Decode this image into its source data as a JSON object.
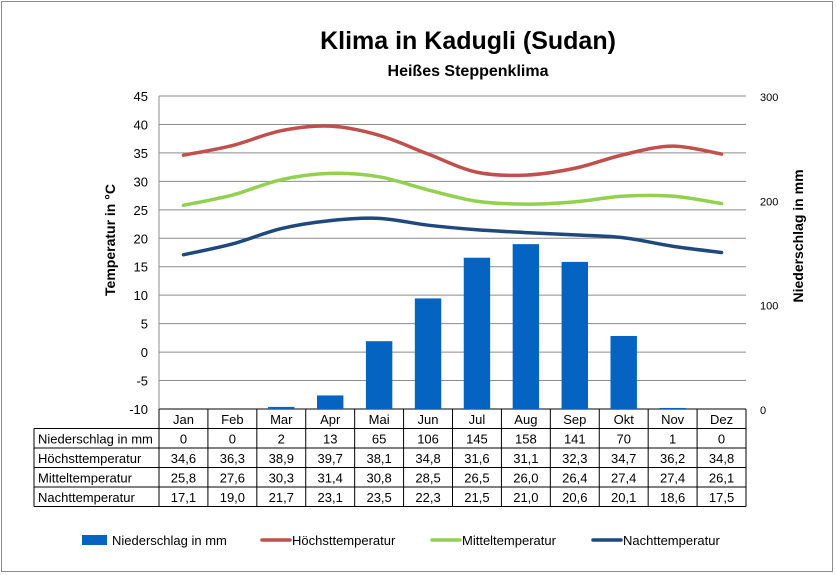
{
  "chart_data": {
    "type": "bar+line",
    "title": "Klima in Kadugli (Sudan)",
    "subtitle": "Heißes Steppenklima",
    "ylabel_left": "Temperatur in °C",
    "ylabel_right": "Niederschlag in mm",
    "ylim_left": [
      -10,
      45
    ],
    "yticks_left": [
      -10,
      -5,
      0,
      5,
      10,
      15,
      20,
      25,
      30,
      35,
      40,
      45
    ],
    "ylim_right": [
      0,
      300
    ],
    "yticks_right": [
      0,
      100,
      200,
      300
    ],
    "grid": true,
    "legend_position": "bottom",
    "categories": [
      "Jan",
      "Feb",
      "Mar",
      "Apr",
      "Mai",
      "Jun",
      "Jul",
      "Aug",
      "Sep",
      "Okt",
      "Nov",
      "Dez"
    ],
    "bar_series": {
      "name": "Niederschlag in mm",
      "axis": "right",
      "color": "#0563C1",
      "values": [
        0,
        0,
        2,
        13,
        65,
        106,
        145,
        158,
        141,
        70,
        1,
        0
      ]
    },
    "line_series": [
      {
        "name": "Höchsttemperatur",
        "axis": "left",
        "color": "#C0504D",
        "values": [
          34.6,
          36.3,
          38.9,
          39.7,
          38.1,
          34.8,
          31.6,
          31.1,
          32.3,
          34.7,
          36.2,
          34.8
        ]
      },
      {
        "name": "Mitteltemperatur",
        "axis": "left",
        "color": "#92D050",
        "values": [
          25.8,
          27.6,
          30.3,
          31.4,
          30.8,
          28.5,
          26.5,
          26.0,
          26.4,
          27.4,
          27.4,
          26.1
        ]
      },
      {
        "name": "Nachttemperatur",
        "axis": "left",
        "color": "#1F497D",
        "values": [
          17.1,
          19.0,
          21.7,
          23.1,
          23.5,
          22.3,
          21.5,
          21.0,
          20.6,
          20.1,
          18.6,
          17.5
        ]
      }
    ],
    "table": {
      "rows": [
        {
          "label": "Niederschlag in mm",
          "cells": [
            "0",
            "0",
            "2",
            "13",
            "65",
            "106",
            "145",
            "158",
            "141",
            "70",
            "1",
            "0"
          ]
        },
        {
          "label": "Höchsttemperatur",
          "cells": [
            "34,6",
            "36,3",
            "38,9",
            "39,7",
            "38,1",
            "34,8",
            "31,6",
            "31,1",
            "32,3",
            "34,7",
            "36,2",
            "34,8"
          ]
        },
        {
          "label": "Mitteltemperatur",
          "cells": [
            "25,8",
            "27,6",
            "30,3",
            "31,4",
            "30,8",
            "28,5",
            "26,5",
            "26,0",
            "26,4",
            "27,4",
            "27,4",
            "26,1"
          ]
        },
        {
          "label": "Nachttemperatur",
          "cells": [
            "17,1",
            "19,0",
            "21,7",
            "23,1",
            "23,5",
            "22,3",
            "21,5",
            "21,0",
            "20,6",
            "20,1",
            "18,6",
            "17,5"
          ]
        }
      ]
    },
    "legend": [
      "Niederschlag in mm",
      "Höchsttemperatur",
      "Mitteltemperatur",
      "Nachttemperatur"
    ]
  }
}
